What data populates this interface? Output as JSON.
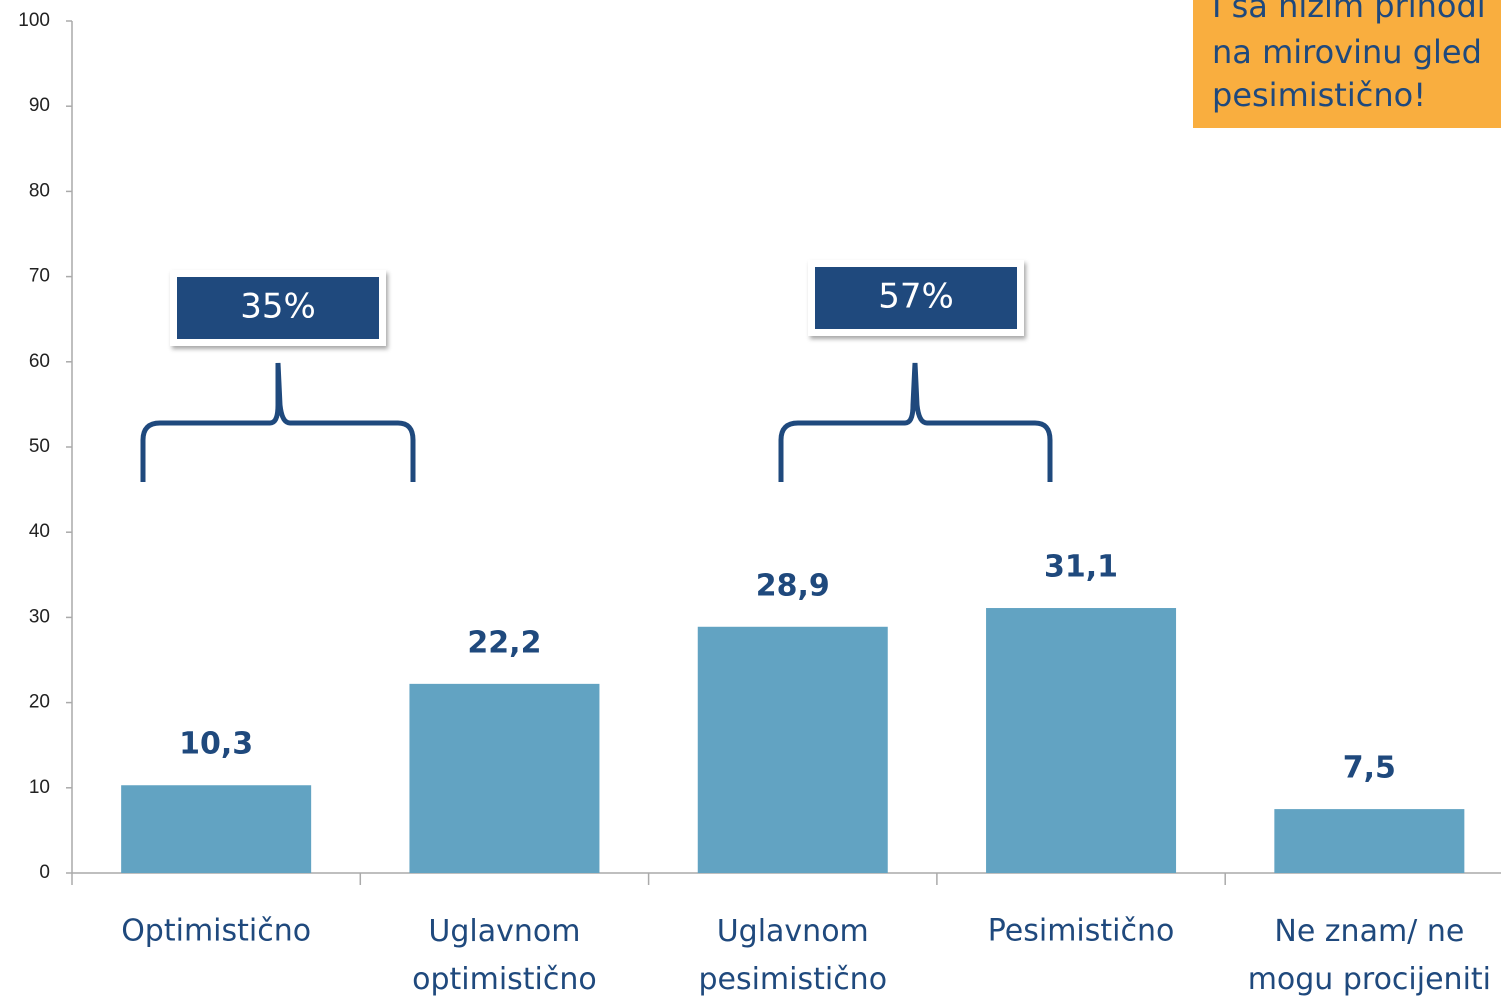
{
  "chart_data": {
    "type": "bar",
    "categories": [
      "Optimistično",
      "Uglavnom\noptimistično",
      "Uglavnom\npesimistično",
      "Pesimistično",
      "Ne znam/ ne\nmogu procijeniti"
    ],
    "values": [
      10.3,
      22.2,
      28.9,
      31.1,
      7.5
    ],
    "value_labels": [
      "10,3",
      "22,2",
      "28,9",
      "31,1",
      "7,5"
    ],
    "color": "#62a3c2",
    "ylim": [
      0,
      100
    ],
    "yticks": [
      0,
      10,
      20,
      30,
      40,
      50,
      60,
      70,
      80,
      90,
      100
    ],
    "annotations": [
      "35%",
      "57%"
    ],
    "callout": [
      "I sa nižim prihodi",
      "na mirovinu gled",
      "pesimistično!"
    ]
  }
}
